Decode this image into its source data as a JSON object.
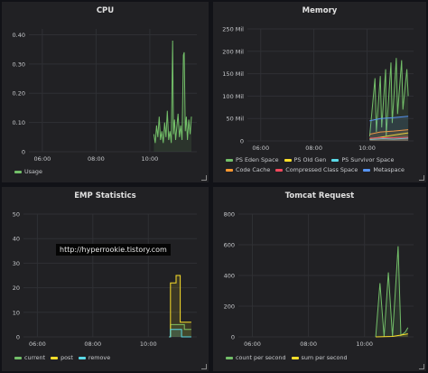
{
  "panels": {
    "cpu": {
      "title": "CPU",
      "legend": [
        {
          "label": "Usage",
          "color": "#73bf69"
        }
      ],
      "chart_data": {
        "type": "line",
        "title": "CPU",
        "xticks": [
          "06:00",
          "08:00",
          "10:00"
        ],
        "yticks": [
          "0",
          "0.10",
          "0.20",
          "0.30",
          "0.40"
        ],
        "ylim": [
          0,
          0.42
        ],
        "series": [
          {
            "name": "Usage",
            "color": "#73bf69",
            "points": [
              [
                10.15,
                0.06
              ],
              [
                10.2,
                0.03
              ],
              [
                10.25,
                0.09
              ],
              [
                10.3,
                0.05
              ],
              [
                10.35,
                0.12
              ],
              [
                10.4,
                0.04
              ],
              [
                10.45,
                0.07
              ],
              [
                10.5,
                0.03
              ],
              [
                10.55,
                0.1
              ],
              [
                10.6,
                0.05
              ],
              [
                10.65,
                0.14
              ],
              [
                10.7,
                0.04
              ],
              [
                10.75,
                0.07
              ],
              [
                10.8,
                0.03
              ],
              [
                10.85,
                0.38
              ],
              [
                10.88,
                0.06
              ],
              [
                10.92,
                0.11
              ],
              [
                10.96,
                0.04
              ],
              [
                11.0,
                0.08
              ],
              [
                11.05,
                0.13
              ],
              [
                11.1,
                0.05
              ],
              [
                11.15,
                0.09
              ],
              [
                11.2,
                0.04
              ],
              [
                11.25,
                0.33
              ],
              [
                11.28,
                0.34
              ],
              [
                11.32,
                0.07
              ],
              [
                11.36,
                0.12
              ],
              [
                11.4,
                0.04
              ],
              [
                11.45,
                0.11
              ],
              [
                11.5,
                0.06
              ],
              [
                11.55,
                0.12
              ]
            ]
          }
        ]
      }
    },
    "memory": {
      "title": "Memory",
      "legend": [
        {
          "label": "PS Eden Space",
          "color": "#73bf69"
        },
        {
          "label": "PS Old Gen",
          "color": "#fade2a"
        },
        {
          "label": "PS Survivor Space",
          "color": "#5ad8e6"
        },
        {
          "label": "Code Cache",
          "color": "#ff9830"
        },
        {
          "label": "Compressed Class Space",
          "color": "#f2495c"
        },
        {
          "label": "Metaspace",
          "color": "#5794f2"
        }
      ],
      "chart_data": {
        "type": "area",
        "title": "Memory",
        "xticks": [
          "06:00",
          "08:00",
          "10:00"
        ],
        "yticks": [
          "0",
          "50 Mil",
          "100 Mil",
          "150 Mil",
          "200 Mil",
          "250 Mil"
        ],
        "ylim": [
          0,
          250
        ],
        "series": [
          {
            "name": "PS Eden Space",
            "color": "#73bf69",
            "points": [
              [
                10.1,
                10
              ],
              [
                10.3,
                140
              ],
              [
                10.35,
                20
              ],
              [
                10.5,
                145
              ],
              [
                10.55,
                30
              ],
              [
                10.7,
                160
              ],
              [
                10.72,
                10
              ],
              [
                10.9,
                175
              ],
              [
                10.95,
                40
              ],
              [
                11.1,
                185
              ],
              [
                11.15,
                60
              ],
              [
                11.3,
                180
              ],
              [
                11.35,
                70
              ],
              [
                11.5,
                160
              ],
              [
                11.55,
                100
              ]
            ]
          },
          {
            "name": "PS Old Gen",
            "color": "#fade2a",
            "points": [
              [
                10.1,
                5
              ],
              [
                10.5,
                8
              ],
              [
                10.9,
                12
              ],
              [
                11.2,
                15
              ],
              [
                11.55,
                18
              ]
            ]
          },
          {
            "name": "PS Survivor Space",
            "color": "#5ad8e6",
            "points": [
              [
                10.1,
                3
              ],
              [
                10.6,
                5
              ],
              [
                11.0,
                4
              ],
              [
                11.55,
                6
              ]
            ]
          },
          {
            "name": "Code Cache",
            "color": "#ff9830",
            "points": [
              [
                10.1,
                15
              ],
              [
                10.5,
                20
              ],
              [
                11.0,
                22
              ],
              [
                11.55,
                25
              ]
            ]
          },
          {
            "name": "Compressed Class Space",
            "color": "#f2495c",
            "points": [
              [
                10.1,
                6
              ],
              [
                10.5,
                7
              ],
              [
                11.0,
                7
              ],
              [
                11.55,
                8
              ]
            ]
          },
          {
            "name": "Metaspace",
            "color": "#5794f2",
            "points": [
              [
                10.1,
                45
              ],
              [
                10.5,
                50
              ],
              [
                11.0,
                52
              ],
              [
                11.55,
                55
              ]
            ]
          }
        ]
      }
    },
    "emp": {
      "title": "EMP Statistics",
      "watermark": "http://hyperrookie.tistory.com",
      "legend": [
        {
          "label": "current",
          "color": "#73bf69"
        },
        {
          "label": "post",
          "color": "#fade2a"
        },
        {
          "label": "remove",
          "color": "#5ad8e6"
        }
      ],
      "chart_data": {
        "type": "line",
        "title": "EMP Statistics",
        "xticks": [
          "06:00",
          "08:00",
          "10:00"
        ],
        "yticks": [
          "0",
          "10",
          "20",
          "30",
          "40",
          "50"
        ],
        "ylim": [
          0,
          50
        ],
        "series": [
          {
            "name": "current",
            "color": "#73bf69",
            "points": [
              [
                10.75,
                0
              ],
              [
                10.8,
                0
              ],
              [
                10.8,
                5
              ],
              [
                11.3,
                5
              ],
              [
                11.3,
                3
              ],
              [
                11.55,
                3
              ]
            ]
          },
          {
            "name": "post",
            "color": "#fade2a",
            "points": [
              [
                10.75,
                0
              ],
              [
                10.8,
                0
              ],
              [
                10.8,
                22
              ],
              [
                11.0,
                22
              ],
              [
                11.0,
                25
              ],
              [
                11.15,
                25
              ],
              [
                11.15,
                6
              ],
              [
                11.55,
                6
              ]
            ]
          },
          {
            "name": "remove",
            "color": "#5ad8e6",
            "points": [
              [
                10.75,
                0
              ],
              [
                10.8,
                0
              ],
              [
                10.8,
                3
              ],
              [
                11.2,
                3
              ],
              [
                11.2,
                0
              ],
              [
                11.55,
                0
              ]
            ]
          }
        ]
      }
    },
    "tomcat": {
      "title": "Tomcat Request",
      "legend": [
        {
          "label": "count per second",
          "color": "#73bf69"
        },
        {
          "label": "sum per second",
          "color": "#fade2a"
        }
      ],
      "chart_data": {
        "type": "line",
        "title": "Tomcat Request",
        "xticks": [
          "06:00",
          "08:00",
          "10:00"
        ],
        "yticks": [
          "0",
          "200",
          "400",
          "600",
          "800"
        ],
        "ylim": [
          0,
          800
        ],
        "series": [
          {
            "name": "count per second",
            "color": "#73bf69",
            "points": [
              [
                10.4,
                0
              ],
              [
                10.55,
                350
              ],
              [
                10.7,
                0
              ],
              [
                10.85,
                420
              ],
              [
                11.0,
                0
              ],
              [
                11.2,
                590
              ],
              [
                11.3,
                10
              ],
              [
                11.45,
                30
              ],
              [
                11.55,
                60
              ]
            ]
          },
          {
            "name": "sum per second",
            "color": "#fade2a",
            "points": [
              [
                10.4,
                0
              ],
              [
                11.0,
                3
              ],
              [
                11.3,
                12
              ],
              [
                11.55,
                20
              ]
            ]
          }
        ]
      }
    }
  }
}
